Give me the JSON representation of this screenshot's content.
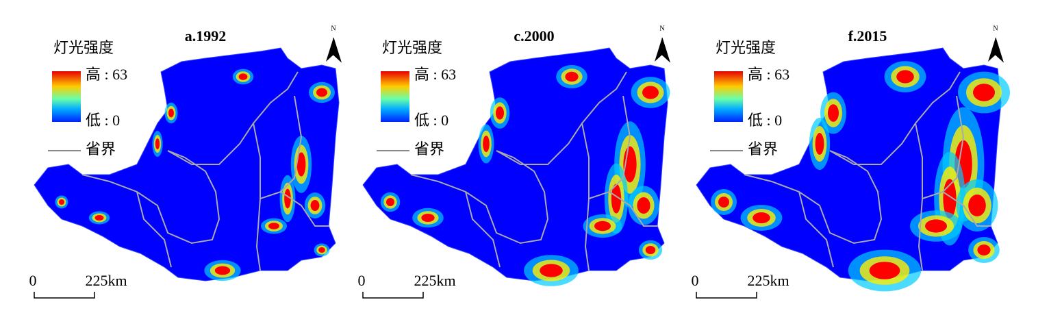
{
  "panels": [
    {
      "title": "a.1992",
      "legend_title": "灯光强度",
      "high": "高 : 63",
      "low": "低 : 0",
      "boundary": "省界",
      "scale_start": "0",
      "scale_end": "225km",
      "north": "N"
    },
    {
      "title": "c.2000",
      "legend_title": "灯光强度",
      "high": "高 : 63",
      "low": "低 : 0",
      "boundary": "省界",
      "scale_start": "0",
      "scale_end": "225km",
      "north": "N"
    },
    {
      "title": "f.2015",
      "legend_title": "灯光强度",
      "high": "高 : 63",
      "low": "低 : 0",
      "boundary": "省界",
      "scale_start": "0",
      "scale_end": "225km",
      "north": "N"
    }
  ]
}
